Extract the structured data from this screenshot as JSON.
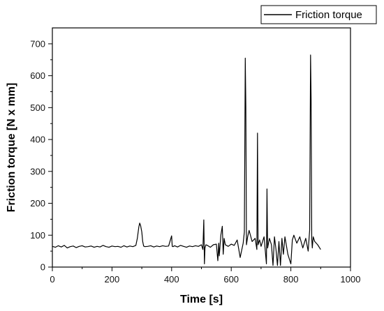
{
  "chart_data": {
    "type": "line",
    "title": "",
    "xlabel": "Time [s]",
    "ylabel": "Friction torque [N x mm]",
    "xlim": [
      0,
      1000
    ],
    "ylim": [
      0,
      750
    ],
    "x_ticks": [
      0,
      200,
      400,
      600,
      800,
      1000
    ],
    "y_ticks": [
      0,
      100,
      200,
      300,
      400,
      500,
      600,
      700
    ],
    "grid": false,
    "legend": "top-right",
    "series": [
      {
        "name": "Friction torque",
        "color": "#000000",
        "x": [
          0,
          10,
          20,
          30,
          40,
          50,
          60,
          70,
          80,
          90,
          100,
          110,
          120,
          130,
          140,
          150,
          160,
          170,
          180,
          190,
          200,
          210,
          220,
          230,
          240,
          250,
          260,
          270,
          280,
          285,
          290,
          293,
          296,
          300,
          303,
          306,
          310,
          320,
          330,
          340,
          350,
          360,
          370,
          380,
          390,
          400,
          402,
          405,
          410,
          420,
          430,
          440,
          450,
          460,
          470,
          480,
          490,
          500,
          505,
          508,
          510,
          512,
          515,
          520,
          530,
          540,
          550,
          555,
          558,
          560,
          565,
          570,
          573,
          576,
          580,
          590,
          600,
          610,
          620,
          630,
          640,
          644,
          647,
          649,
          651,
          655,
          660,
          670,
          680,
          686,
          688,
          690,
          695,
          700,
          710,
          718,
          720,
          722,
          728,
          735,
          740,
          745,
          750,
          755,
          760,
          765,
          770,
          775,
          780,
          790,
          800,
          805,
          810,
          820,
          830,
          840,
          850,
          858,
          863,
          866,
          868,
          870,
          872,
          875,
          880,
          890,
          900
        ],
        "y": [
          65,
          62,
          67,
          63,
          68,
          60,
          64,
          66,
          61,
          65,
          67,
          63,
          64,
          66,
          62,
          65,
          63,
          68,
          64,
          62,
          66,
          64,
          65,
          62,
          67,
          63,
          66,
          64,
          68,
          90,
          125,
          138,
          130,
          110,
          80,
          66,
          64,
          65,
          67,
          63,
          66,
          64,
          67,
          65,
          66,
          98,
          65,
          64,
          67,
          63,
          68,
          65,
          62,
          66,
          64,
          67,
          65,
          70,
          55,
          148,
          10,
          60,
          70,
          68,
          62,
          70,
          72,
          20,
          75,
          35,
          100,
          128,
          40,
          90,
          70,
          65,
          72,
          68,
          85,
          30,
          75,
          110,
          655,
          505,
          70,
          95,
          115,
          80,
          90,
          55,
          420,
          70,
          85,
          65,
          95,
          10,
          245,
          60,
          90,
          70,
          5,
          95,
          55,
          5,
          80,
          5,
          90,
          40,
          95,
          40,
          10,
          85,
          100,
          75,
          95,
          60,
          90,
          50,
          115,
          665,
          525,
          90,
          60,
          95,
          80,
          70,
          55
        ]
      }
    ]
  }
}
